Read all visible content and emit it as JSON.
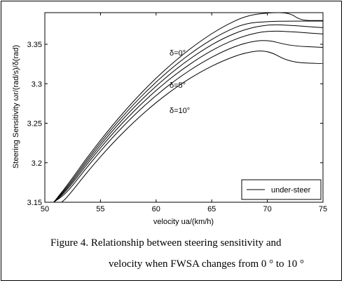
{
  "caption": {
    "line1": "Figure 4.  Relationship between steering sensitivity and",
    "line2": "velocity when FWSA changes from 0 ° to 10 °"
  },
  "chart_data": {
    "type": "line",
    "title": "",
    "xlabel": "velocity ua/(km/h)",
    "ylabel": "Steering Sensitivity ωr/(rad/s)/δ(rad)",
    "xlim": [
      50,
      75
    ],
    "ylim": [
      3.15,
      3.39
    ],
    "xticks": [
      50,
      55,
      60,
      65,
      70,
      75
    ],
    "yticks": [
      3.15,
      3.2,
      3.25,
      3.3,
      3.35
    ],
    "ytick_labels": [
      "3.15",
      "3.2",
      "3.25",
      "3.3",
      "3.35"
    ],
    "grid": false,
    "legend": {
      "position": "bottom-right",
      "entries": [
        "under-steer"
      ]
    },
    "annotations": [
      "δ=0°",
      "δ=5°",
      "δ=10°"
    ],
    "series": [
      {
        "x": [
          50.8,
          52,
          54,
          56,
          58,
          60,
          62,
          64,
          66,
          68,
          70,
          72,
          73,
          75
        ],
        "y": [
          3.15,
          3.1712,
          3.2105,
          3.2463,
          3.2786,
          3.3074,
          3.3326,
          3.3543,
          3.3723,
          3.3857,
          3.3948,
          3.3996,
          3.38,
          3.38
        ]
      },
      {
        "x": [
          50.8,
          52,
          54,
          56,
          58,
          60,
          62,
          64,
          66,
          68,
          70,
          72,
          75
        ],
        "y": [
          3.15,
          3.169,
          3.2078,
          3.243,
          3.2745,
          3.3025,
          3.3268,
          3.3475,
          3.3645,
          3.3765,
          3.3788,
          3.3793,
          3.3793
        ]
      },
      {
        "x": [
          50.8,
          52,
          54,
          56,
          58,
          60,
          62,
          64,
          66,
          68,
          70,
          72,
          75
        ],
        "y": [
          3.15,
          3.167,
          3.205,
          3.2395,
          3.2702,
          3.2974,
          3.321,
          3.341,
          3.3575,
          3.369,
          3.375,
          3.374,
          3.371
        ]
      },
      {
        "x": [
          50.8,
          52,
          54,
          56,
          58,
          60,
          62,
          64,
          66,
          68,
          70,
          72,
          75
        ],
        "y": [
          3.15,
          3.165,
          3.202,
          3.2356,
          3.2655,
          3.2919,
          3.3147,
          3.334,
          3.3498,
          3.3612,
          3.367,
          3.366,
          3.363
        ]
      },
      {
        "x": [
          50.8,
          52,
          54,
          56,
          58,
          60,
          62,
          64,
          66,
          68,
          70,
          72,
          75
        ],
        "y": [
          3.15,
          3.162,
          3.1983,
          3.231,
          3.26,
          3.2855,
          3.3074,
          3.3259,
          3.341,
          3.352,
          3.356,
          3.348,
          3.346
        ]
      },
      {
        "x": [
          51.5,
          52,
          54,
          56,
          58,
          60,
          62,
          64,
          66,
          68,
          70,
          72,
          75
        ],
        "y": [
          3.15,
          3.156,
          3.1915,
          3.2235,
          3.2518,
          3.2765,
          3.2976,
          3.3152,
          3.3292,
          3.3395,
          3.3429,
          3.327,
          3.3255
        ]
      }
    ]
  }
}
